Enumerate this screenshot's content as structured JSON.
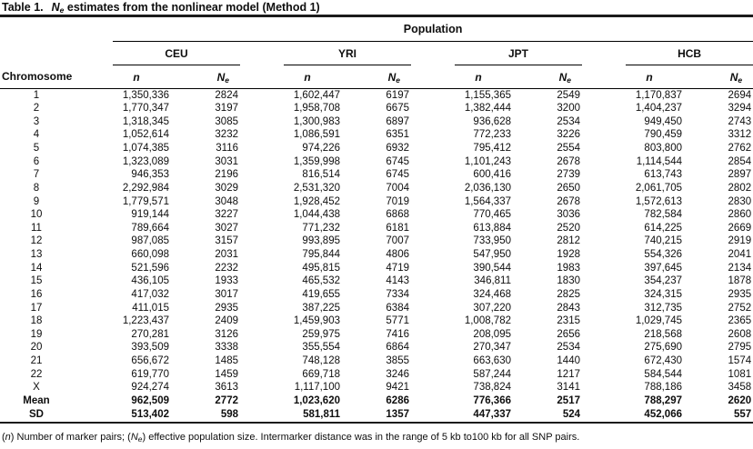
{
  "title": {
    "prefix": "Table 1.",
    "n_main": "N",
    "n_sub": "e",
    "suffix": " estimates from the nonlinear model (Method 1)"
  },
  "table": {
    "population_header": "Population",
    "groups": [
      "CEU",
      "YRI",
      "JPT",
      "HCB"
    ],
    "chromosome_header": "Chromosome",
    "n_label": "n",
    "ne_main": "N",
    "ne_sub": "e",
    "rows": [
      {
        "chrom": "1",
        "bold": false,
        "values": [
          "1,350,336",
          "2824",
          "1,602,447",
          "6197",
          "1,155,365",
          "2549",
          "1,170,837",
          "2694"
        ]
      },
      {
        "chrom": "2",
        "bold": false,
        "values": [
          "1,770,347",
          "3197",
          "1,958,708",
          "6675",
          "1,382,444",
          "3200",
          "1,404,237",
          "3294"
        ]
      },
      {
        "chrom": "3",
        "bold": false,
        "values": [
          "1,318,345",
          "3085",
          "1,300,983",
          "6897",
          "936,628",
          "2534",
          "949,450",
          "2743"
        ]
      },
      {
        "chrom": "4",
        "bold": false,
        "values": [
          "1,052,614",
          "3232",
          "1,086,591",
          "6351",
          "772,233",
          "3226",
          "790,459",
          "3312"
        ]
      },
      {
        "chrom": "5",
        "bold": false,
        "values": [
          "1,074,385",
          "3116",
          "974,226",
          "6932",
          "795,412",
          "2554",
          "803,800",
          "2762"
        ]
      },
      {
        "chrom": "6",
        "bold": false,
        "values": [
          "1,323,089",
          "3031",
          "1,359,998",
          "6745",
          "1,101,243",
          "2678",
          "1,114,544",
          "2854"
        ]
      },
      {
        "chrom": "7",
        "bold": false,
        "values": [
          "946,353",
          "2196",
          "816,514",
          "6745",
          "600,416",
          "2739",
          "613,743",
          "2897"
        ]
      },
      {
        "chrom": "8",
        "bold": false,
        "values": [
          "2,292,984",
          "3029",
          "2,531,320",
          "7004",
          "2,036,130",
          "2650",
          "2,061,705",
          "2802"
        ]
      },
      {
        "chrom": "9",
        "bold": false,
        "values": [
          "1,779,571",
          "3048",
          "1,928,452",
          "7019",
          "1,564,337",
          "2678",
          "1,572,613",
          "2830"
        ]
      },
      {
        "chrom": "10",
        "bold": false,
        "values": [
          "919,144",
          "3227",
          "1,044,438",
          "6868",
          "770,465",
          "3036",
          "782,584",
          "2860"
        ]
      },
      {
        "chrom": "11",
        "bold": false,
        "values": [
          "789,664",
          "3027",
          "771,232",
          "6181",
          "613,884",
          "2520",
          "614,225",
          "2669"
        ]
      },
      {
        "chrom": "12",
        "bold": false,
        "values": [
          "987,085",
          "3157",
          "993,895",
          "7007",
          "733,950",
          "2812",
          "740,215",
          "2919"
        ]
      },
      {
        "chrom": "13",
        "bold": false,
        "values": [
          "660,098",
          "2031",
          "795,844",
          "4806",
          "547,950",
          "1928",
          "554,326",
          "2041"
        ]
      },
      {
        "chrom": "14",
        "bold": false,
        "values": [
          "521,596",
          "2232",
          "495,815",
          "4719",
          "390,544",
          "1983",
          "397,645",
          "2134"
        ]
      },
      {
        "chrom": "15",
        "bold": false,
        "values": [
          "436,105",
          "1933",
          "465,532",
          "4143",
          "346,811",
          "1830",
          "354,237",
          "1878"
        ]
      },
      {
        "chrom": "16",
        "bold": false,
        "values": [
          "417,032",
          "3017",
          "419,655",
          "7334",
          "324,468",
          "2825",
          "324,315",
          "2935"
        ]
      },
      {
        "chrom": "17",
        "bold": false,
        "values": [
          "411,015",
          "2935",
          "387,225",
          "6384",
          "307,220",
          "2843",
          "312,735",
          "2752"
        ]
      },
      {
        "chrom": "18",
        "bold": false,
        "values": [
          "1,223,437",
          "2409",
          "1,459,903",
          "5771",
          "1,008,782",
          "2315",
          "1,029,745",
          "2365"
        ]
      },
      {
        "chrom": "19",
        "bold": false,
        "values": [
          "270,281",
          "3126",
          "259,975",
          "7416",
          "208,095",
          "2656",
          "218,568",
          "2608"
        ]
      },
      {
        "chrom": "20",
        "bold": false,
        "values": [
          "393,509",
          "3338",
          "355,554",
          "6864",
          "270,347",
          "2534",
          "275,690",
          "2795"
        ]
      },
      {
        "chrom": "21",
        "bold": false,
        "values": [
          "656,672",
          "1485",
          "748,128",
          "3855",
          "663,630",
          "1440",
          "672,430",
          "1574"
        ]
      },
      {
        "chrom": "22",
        "bold": false,
        "values": [
          "619,770",
          "1459",
          "669,718",
          "3246",
          "587,244",
          "1217",
          "584,544",
          "1081"
        ]
      },
      {
        "chrom": "X",
        "bold": false,
        "values": [
          "924,274",
          "3613",
          "1,117,100",
          "9421",
          "738,824",
          "3141",
          "788,186",
          "3458"
        ]
      },
      {
        "chrom": "Mean",
        "bold": true,
        "values": [
          "962,509",
          "2772",
          "1,023,620",
          "6286",
          "776,366",
          "2517",
          "788,297",
          "2620"
        ]
      },
      {
        "chrom": "SD",
        "bold": true,
        "values": [
          "513,402",
          "598",
          "581,811",
          "1357",
          "447,337",
          "524",
          "452,066",
          "557"
        ]
      }
    ]
  },
  "footnote": {
    "p1": "(",
    "n_symbol": "n",
    "p2": ") Number of marker pairs; (",
    "ne_main": "N",
    "ne_sub": "e",
    "p3": ") effective population size. Intermarker distance was in the range of 5 kb to100 kb for all SNP pairs."
  }
}
